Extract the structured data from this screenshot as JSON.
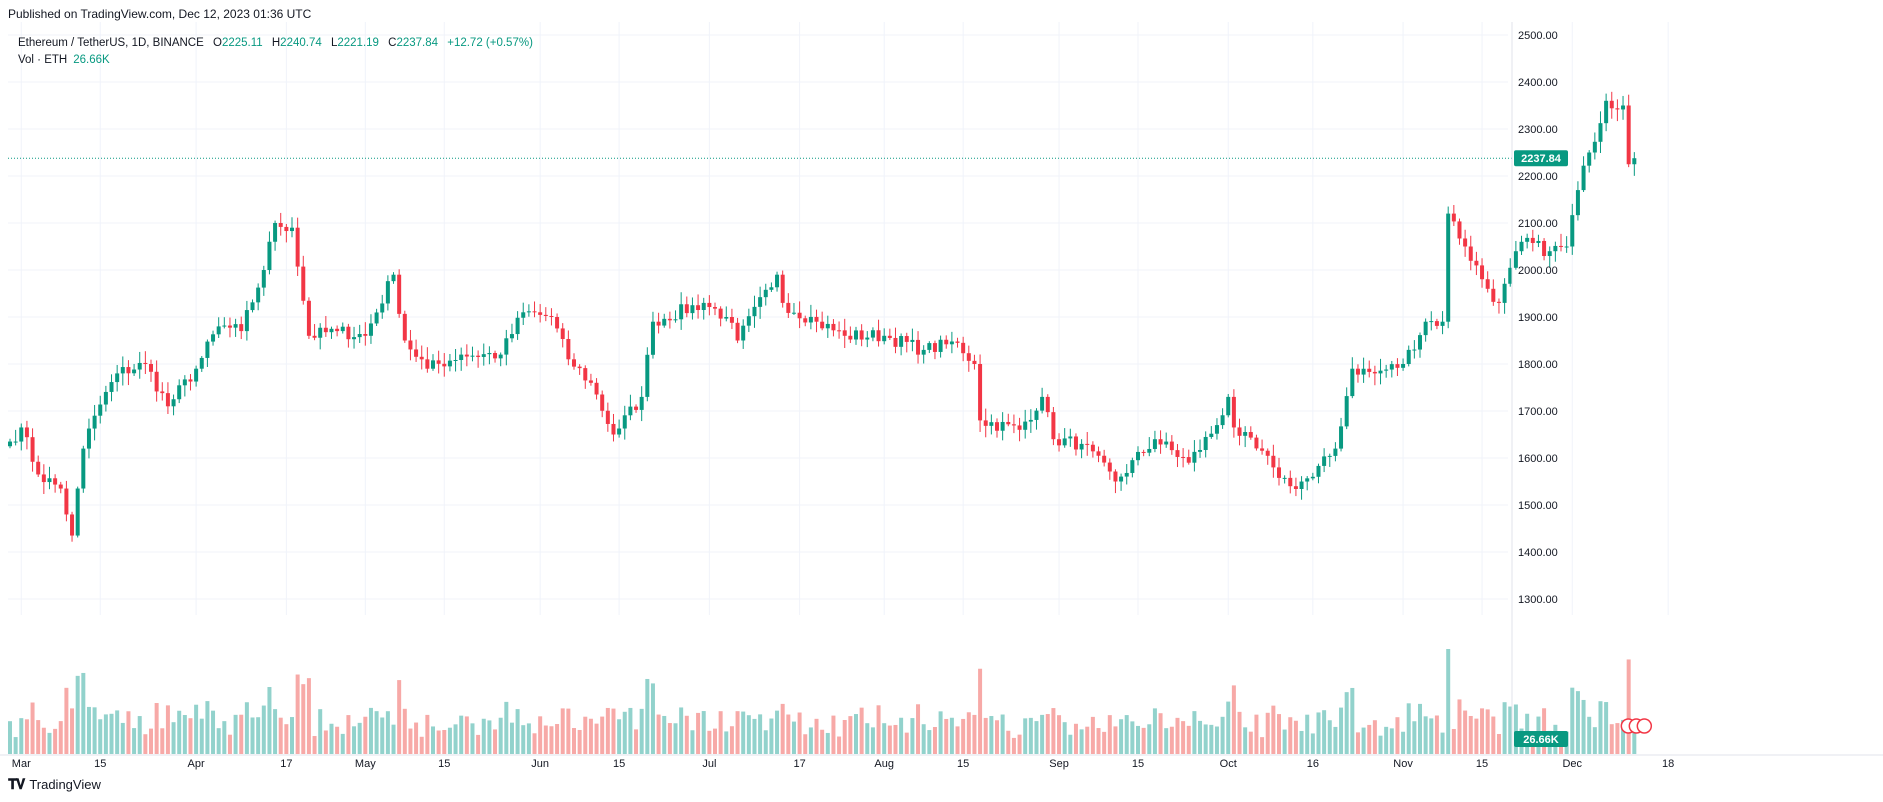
{
  "published": "Published on TradingView.com, Dec 12, 2023 01:36 UTC",
  "legend": {
    "symbol": "Ethereum / TetherUS, 1D, BINANCE",
    "open_label": "O",
    "open": "2225.11",
    "high_label": "H",
    "high": "2240.74",
    "low_label": "L",
    "low": "2221.19",
    "close_label": "C",
    "close": "2237.84",
    "change": "+12.72 (+0.57%)",
    "vol_label": "Vol · ETH",
    "vol_value": "26.66K"
  },
  "price_badge": "2237.84",
  "volume_badge": "26.66K",
  "footer": {
    "brand": "TradingView",
    "logo_icon": "tradingview-logo-icon"
  },
  "colors": {
    "up": "#089981",
    "down": "#f23645",
    "up_vol": "#92d2cc",
    "down_vol": "#f7a9a7",
    "grid": "#f0f3fa",
    "axis_text": "#131722"
  },
  "chart_data": {
    "type": "candlestick",
    "title": "Ethereum / TetherUS, 1D, BINANCE",
    "y_ticks": [
      "2500.00",
      "2400.00",
      "2300.00",
      "2200.00",
      "2100.00",
      "2000.00",
      "1900.00",
      "1800.00",
      "1700.00",
      "1600.00",
      "1500.00",
      "1400.00",
      "1300.00"
    ],
    "y_tick_values": [
      2500,
      2400,
      2300,
      2200,
      2100,
      2000,
      1900,
      1800,
      1700,
      1600,
      1500,
      1400,
      1300
    ],
    "ylim": [
      1270,
      2530
    ],
    "x_ticks": [
      {
        "label": "Mar",
        "date": "2023-03-01"
      },
      {
        "label": "15",
        "date": "2023-03-15"
      },
      {
        "label": "Apr",
        "date": "2023-04-01"
      },
      {
        "label": "17",
        "date": "2023-04-17"
      },
      {
        "label": "May",
        "date": "2023-05-01"
      },
      {
        "label": "15",
        "date": "2023-05-15"
      },
      {
        "label": "Jun",
        "date": "2023-06-01"
      },
      {
        "label": "15",
        "date": "2023-06-15"
      },
      {
        "label": "Jul",
        "date": "2023-07-01"
      },
      {
        "label": "17",
        "date": "2023-07-17"
      },
      {
        "label": "Aug",
        "date": "2023-08-01"
      },
      {
        "label": "15",
        "date": "2023-08-15"
      },
      {
        "label": "Sep",
        "date": "2023-09-01"
      },
      {
        "label": "15",
        "date": "2023-09-15"
      },
      {
        "label": "Oct",
        "date": "2023-10-01"
      },
      {
        "label": "16",
        "date": "2023-10-16"
      },
      {
        "label": "Nov",
        "date": "2023-11-01"
      },
      {
        "label": "15",
        "date": "2023-11-15"
      },
      {
        "label": "Dec",
        "date": "2023-12-01"
      },
      {
        "label": "18",
        "date": "2023-12-18"
      }
    ],
    "start_date": "2023-02-27",
    "last_price": 2237.84,
    "key_points": [
      {
        "date": "2023-02-27",
        "close": 1635
      },
      {
        "date": "2023-03-01",
        "close": 1665
      },
      {
        "date": "2023-03-04",
        "close": 1565
      },
      {
        "date": "2023-03-08",
        "close": 1535
      },
      {
        "date": "2023-03-10",
        "close": 1435
      },
      {
        "date": "2023-03-12",
        "close": 1620
      },
      {
        "date": "2023-03-14",
        "close": 1690
      },
      {
        "date": "2023-03-18",
        "close": 1780
      },
      {
        "date": "2023-03-23",
        "close": 1800
      },
      {
        "date": "2023-03-27",
        "close": 1710
      },
      {
        "date": "2023-04-01",
        "close": 1790
      },
      {
        "date": "2023-04-05",
        "close": 1880
      },
      {
        "date": "2023-04-09",
        "close": 1870
      },
      {
        "date": "2023-04-13",
        "close": 2000
      },
      {
        "date": "2023-04-15",
        "close": 2100
      },
      {
        "date": "2023-04-18",
        "close": 2090
      },
      {
        "date": "2023-04-21",
        "close": 1860
      },
      {
        "date": "2023-04-26",
        "close": 1870
      },
      {
        "date": "2023-05-01",
        "close": 1860
      },
      {
        "date": "2023-05-06",
        "close": 1990
      },
      {
        "date": "2023-05-08",
        "close": 1850
      },
      {
        "date": "2023-05-12",
        "close": 1790
      },
      {
        "date": "2023-05-18",
        "close": 1820
      },
      {
        "date": "2023-05-25",
        "close": 1820
      },
      {
        "date": "2023-05-29",
        "close": 1910
      },
      {
        "date": "2023-06-03",
        "close": 1900
      },
      {
        "date": "2023-06-06",
        "close": 1810
      },
      {
        "date": "2023-06-10",
        "close": 1760
      },
      {
        "date": "2023-06-14",
        "close": 1650
      },
      {
        "date": "2023-06-19",
        "close": 1730
      },
      {
        "date": "2023-06-21",
        "close": 1890
      },
      {
        "date": "2023-06-30",
        "close": 1930
      },
      {
        "date": "2023-07-04",
        "close": 1900
      },
      {
        "date": "2023-07-06",
        "close": 1850
      },
      {
        "date": "2023-07-13",
        "close": 1990
      },
      {
        "date": "2023-07-14",
        "close": 1930
      },
      {
        "date": "2023-07-20",
        "close": 1890
      },
      {
        "date": "2023-07-25",
        "close": 1860
      },
      {
        "date": "2023-08-01",
        "close": 1860
      },
      {
        "date": "2023-08-08",
        "close": 1830
      },
      {
        "date": "2023-08-14",
        "close": 1845
      },
      {
        "date": "2023-08-17",
        "close": 1800
      },
      {
        "date": "2023-08-18",
        "close": 1680
      },
      {
        "date": "2023-08-25",
        "close": 1660
      },
      {
        "date": "2023-08-29",
        "close": 1730
      },
      {
        "date": "2023-08-31",
        "close": 1640
      },
      {
        "date": "2023-09-05",
        "close": 1630
      },
      {
        "date": "2023-09-11",
        "close": 1550
      },
      {
        "date": "2023-09-18",
        "close": 1640
      },
      {
        "date": "2023-09-24",
        "close": 1590
      },
      {
        "date": "2023-09-29",
        "close": 1670
      },
      {
        "date": "2023-10-01",
        "close": 1730
      },
      {
        "date": "2023-10-02",
        "close": 1665
      },
      {
        "date": "2023-10-09",
        "close": 1580
      },
      {
        "date": "2023-10-12",
        "close": 1540
      },
      {
        "date": "2023-10-16",
        "close": 1560
      },
      {
        "date": "2023-10-20",
        "close": 1620
      },
      {
        "date": "2023-10-23",
        "close": 1790
      },
      {
        "date": "2023-10-27",
        "close": 1780
      },
      {
        "date": "2023-11-01",
        "close": 1800
      },
      {
        "date": "2023-11-05",
        "close": 1890
      },
      {
        "date": "2023-11-08",
        "close": 1890
      },
      {
        "date": "2023-11-09",
        "close": 2120
      },
      {
        "date": "2023-11-12",
        "close": 2050
      },
      {
        "date": "2023-11-16",
        "close": 1960
      },
      {
        "date": "2023-11-18",
        "close": 1930
      },
      {
        "date": "2023-11-22",
        "close": 2060
      },
      {
        "date": "2023-11-27",
        "close": 2040
      },
      {
        "date": "2023-11-30",
        "close": 2050
      },
      {
        "date": "2023-12-02",
        "close": 2170
      },
      {
        "date": "2023-12-04",
        "close": 2250
      },
      {
        "date": "2023-12-07",
        "close": 2360
      },
      {
        "date": "2023-12-10",
        "close": 2350
      },
      {
        "date": "2023-12-11",
        "close": 2225
      },
      {
        "date": "2023-12-12",
        "close": 2237.84
      }
    ]
  }
}
